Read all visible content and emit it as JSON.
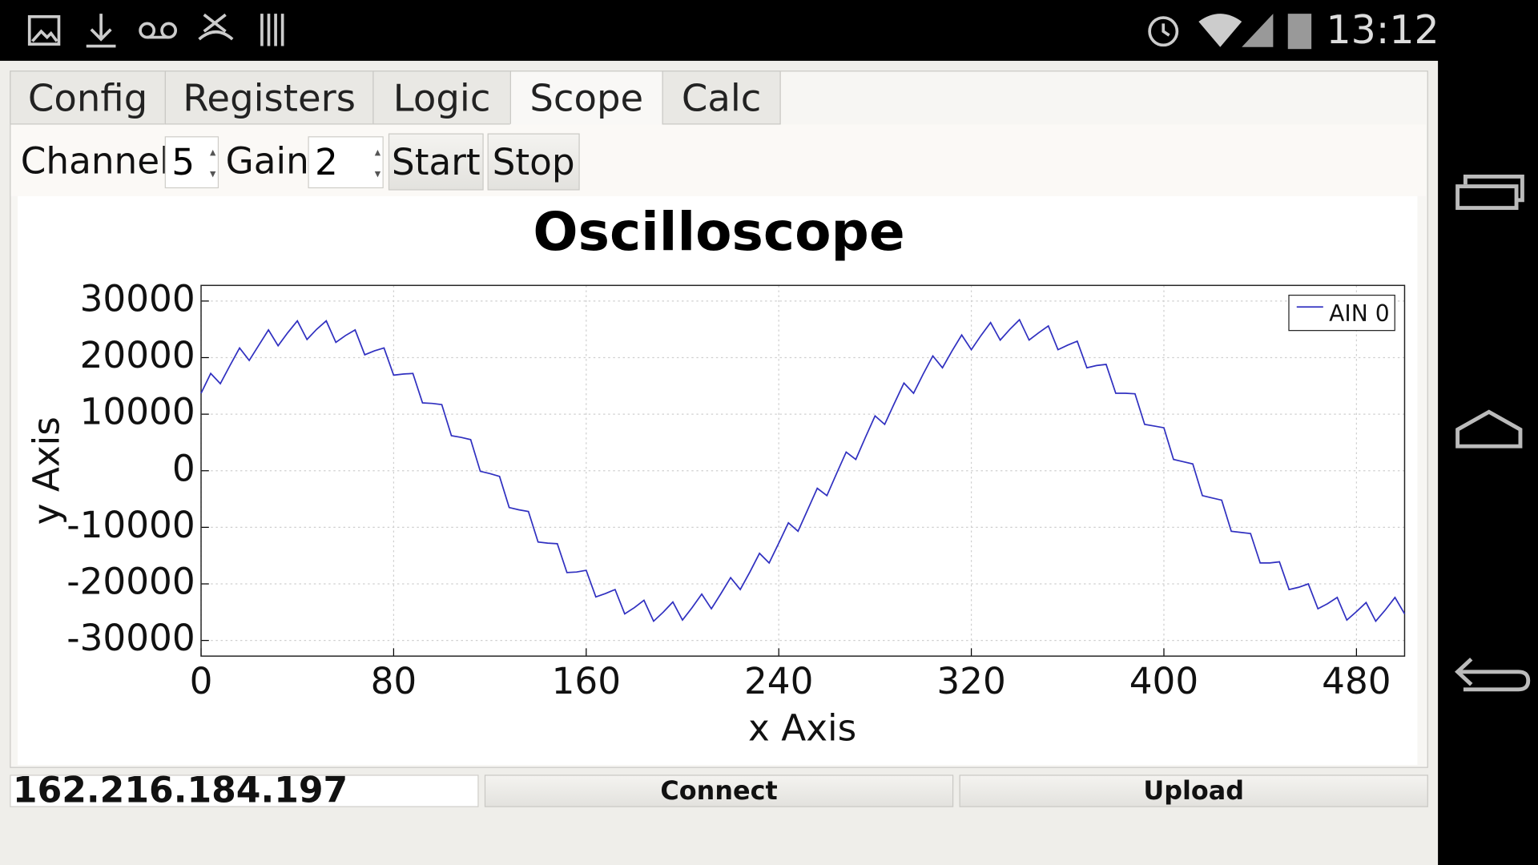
{
  "status_bar": {
    "time": "13:12"
  },
  "tabs": [
    "Config",
    "Registers",
    "Logic",
    "Scope",
    "Calc"
  ],
  "controls": {
    "channel_label": "Channel",
    "channel_value": "5",
    "gain_label": "Gain",
    "gain_value": "2",
    "start": "Start",
    "stop": "Stop"
  },
  "chart_data": {
    "type": "line",
    "title": "Oscilloscope",
    "x_label": "x Axis",
    "y_label": "y Axis",
    "x": [
      0,
      4,
      8,
      12,
      16,
      20,
      24,
      28,
      32,
      36,
      40,
      44,
      48,
      52,
      56,
      60,
      64,
      68,
      72,
      76,
      80,
      84,
      88,
      92,
      96,
      100,
      104,
      108,
      112,
      116,
      120,
      124,
      128,
      132,
      136,
      140,
      144,
      148,
      152,
      156,
      160,
      164,
      168,
      172,
      176,
      180,
      184,
      188,
      192,
      196,
      200,
      204,
      208,
      212,
      216,
      220,
      224,
      228,
      232,
      236,
      240,
      244,
      248,
      252,
      256,
      260,
      264,
      268,
      272,
      276,
      280,
      284,
      288,
      292,
      296,
      300,
      304,
      308,
      312,
      316,
      320,
      324,
      328,
      332,
      336,
      340,
      344,
      348,
      352,
      356,
      360,
      364,
      368,
      372,
      376,
      380,
      384,
      388,
      392,
      396,
      400,
      404,
      408,
      412,
      416,
      420,
      424,
      428,
      432,
      436,
      440,
      444,
      448,
      452,
      456,
      460,
      464,
      468,
      472,
      476,
      480,
      484,
      488,
      492,
      496,
      500
    ],
    "series": [
      {
        "name": "AIN 0",
        "color": "#3030c0",
        "values": [
          13700,
          17200,
          15400,
          18600,
          21700,
          19500,
          22200,
          24900,
          22100,
          24400,
          26500,
          23200,
          25000,
          26500,
          22700,
          23900,
          24900,
          20500,
          21200,
          21700,
          16900,
          17100,
          17200,
          12000,
          11900,
          11700,
          6200,
          5900,
          5500,
          -100,
          -500,
          -1000,
          -6500,
          -6900,
          -7200,
          -12600,
          -12800,
          -12900,
          -18000,
          -17900,
          -17600,
          -22300,
          -21700,
          -21000,
          -25300,
          -24200,
          -22900,
          -26600,
          -25000,
          -23200,
          -26400,
          -24200,
          -21800,
          -24400,
          -21700,
          -18900,
          -21000,
          -17900,
          -14600,
          -16300,
          -12800,
          -9200,
          -10700,
          -6900,
          -3100,
          -4400,
          -500,
          3300,
          2000,
          5900,
          9700,
          8200,
          11900,
          15500,
          13700,
          17100,
          20300,
          18200,
          21200,
          24000,
          21400,
          23900,
          26200,
          23100,
          25000,
          26700,
          23100,
          24400,
          25600,
          21400,
          22200,
          22900,
          18200,
          18600,
          18800,
          13700,
          13700,
          13600,
          8200,
          7900,
          7600,
          2000,
          1600,
          1200,
          -4400,
          -4800,
          -5200,
          -10700,
          -10900,
          -11100,
          -16300,
          -16300,
          -16100,
          -21000,
          -20600,
          -20000,
          -24400,
          -23500,
          -22400,
          -26400,
          -24900,
          -23300,
          -26600,
          -24600,
          -22400,
          -25300
        ]
      }
    ],
    "xlim": [
      0,
      500
    ],
    "ylim": [
      -32768,
      32767
    ],
    "xticks": [
      0,
      80,
      160,
      240,
      320,
      400,
      480
    ],
    "yticks": [
      -30000,
      -20000,
      -10000,
      0,
      10000,
      20000,
      30000
    ],
    "grid": true,
    "legend": "upper right"
  },
  "footer": {
    "address": "162.216.184.197",
    "connect": "Connect",
    "upload": "Upload"
  }
}
